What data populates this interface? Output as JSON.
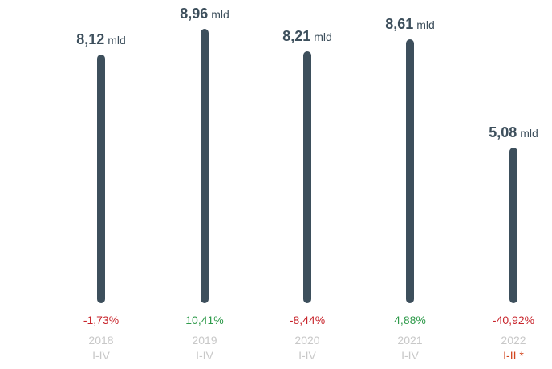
{
  "chart_data": {
    "type": "bar",
    "unit": "mld",
    "ylim": [
      0,
      9
    ],
    "categories": [
      {
        "year": "2018",
        "period": "I-IV",
        "value": 8.12,
        "value_label": "8,12",
        "change": "-1,73%",
        "change_sign": "neg",
        "highlight": false
      },
      {
        "year": "2019",
        "period": "I-IV",
        "value": 8.96,
        "value_label": "8,96",
        "change": "10,41%",
        "change_sign": "pos",
        "highlight": false
      },
      {
        "year": "2020",
        "period": "I-IV",
        "value": 8.21,
        "value_label": "8,21",
        "change": "-8,44%",
        "change_sign": "neg",
        "highlight": false
      },
      {
        "year": "2021",
        "period": "I-IV",
        "value": 8.61,
        "value_label": "8,61",
        "change": "4,88%",
        "change_sign": "pos",
        "highlight": false
      },
      {
        "year": "2022",
        "period": "I-II *",
        "value": 5.08,
        "value_label": "5,08",
        "change": "-40,92%",
        "change_sign": "neg",
        "highlight": true
      }
    ],
    "colors": {
      "bar": "#3d4f5c",
      "negative": "#c8252c",
      "positive": "#2e9a4a",
      "muted": "#c8c8c8",
      "highlight": "#d2451e"
    }
  }
}
